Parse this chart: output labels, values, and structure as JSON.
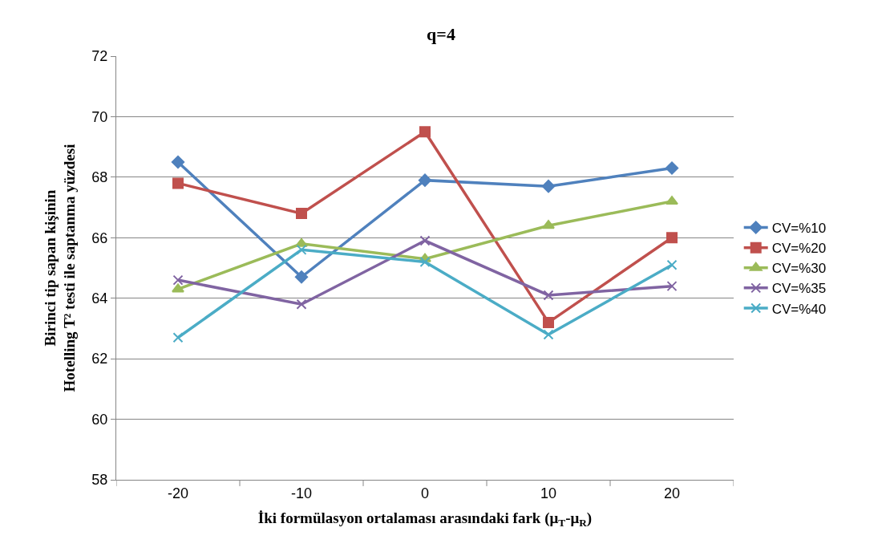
{
  "chart_data": {
    "type": "line",
    "title": "q=4",
    "xlabel": "İki formülasyon ortalaması arasındaki fark (μ$_{T}$-μ$_{R}$)",
    "ylabel": "Birinci tip sapan kişinin\nHotelling T² testi ile saptanma yüzdesi",
    "categories": [
      "-20",
      "-10",
      "0",
      "10",
      "20"
    ],
    "series": [
      {
        "name": "CV=%10",
        "color": "#4f81bd",
        "marker": "diamond",
        "values": [
          68.5,
          64.7,
          67.9,
          67.7,
          68.3
        ]
      },
      {
        "name": "CV=%20",
        "color": "#c0504d",
        "marker": "square",
        "values": [
          67.8,
          66.8,
          69.5,
          63.2,
          66.0
        ]
      },
      {
        "name": "CV=%30",
        "color": "#9bbb59",
        "marker": "triangle",
        "values": [
          64.3,
          65.8,
          65.3,
          66.4,
          67.2
        ]
      },
      {
        "name": "CV=%35",
        "color": "#8064a2",
        "marker": "cross",
        "values": [
          64.6,
          63.8,
          65.9,
          64.1,
          64.4
        ]
      },
      {
        "name": "CV=%40",
        "color": "#4bacc6",
        "marker": "cross",
        "values": [
          62.7,
          65.6,
          65.2,
          62.8,
          65.1
        ]
      }
    ],
    "ylim": [
      58,
      72
    ],
    "yticks": [
      58,
      60,
      62,
      64,
      66,
      68,
      70,
      72
    ],
    "grid": "y",
    "legend": "right",
    "line_style": "solid"
  }
}
